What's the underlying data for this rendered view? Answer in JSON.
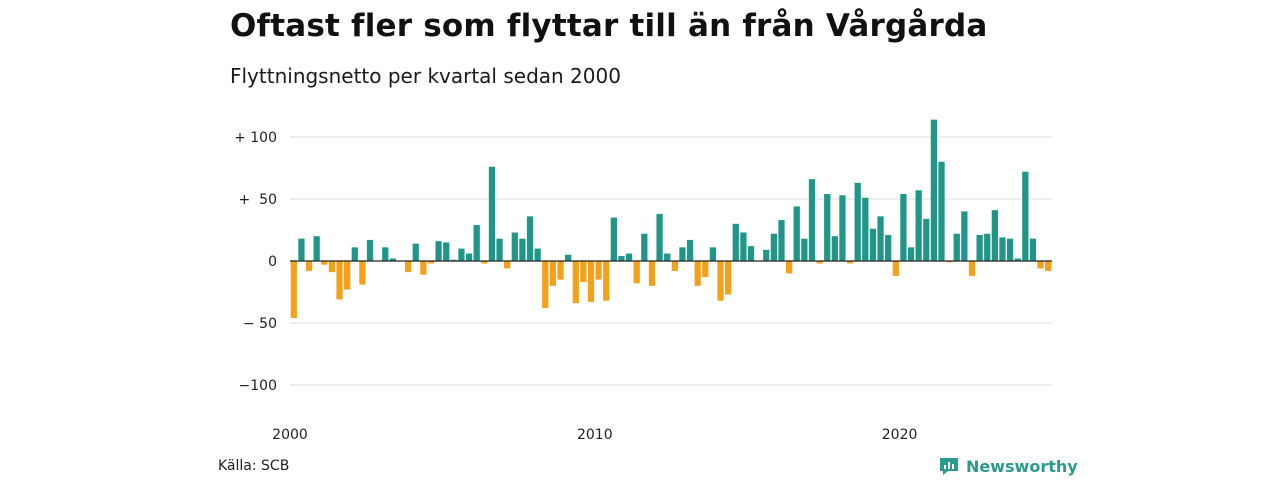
{
  "title": "Oftast fler som flyttar till än från Vårgårda",
  "subtitle": "Flyttningsnetto per kvartal sedan 2000",
  "source": "Källa: SCB",
  "brand": {
    "name": "Newsworthy",
    "icon": "newsworthy-logo-icon",
    "color": "#2a9a8c"
  },
  "colors": {
    "positive": "#1f9688",
    "negative": "#f5a01a",
    "grid": "#dddddd",
    "zero_line": "#222222"
  },
  "chart_data": {
    "type": "bar",
    "title": "Oftast fler som flyttar till än från Vårgårda",
    "subtitle": "Flyttningsnetto per kvartal sedan 2000",
    "xlabel": "",
    "ylabel": "",
    "x_start": "2000 Q1",
    "x_ticks": [
      {
        "label": "2000",
        "index": 0
      },
      {
        "label": "2010",
        "index": 40
      },
      {
        "label": "2020",
        "index": 80
      }
    ],
    "y_ticks": [
      {
        "label": "+ 100",
        "value": 100
      },
      {
        "label": "+  50",
        "value": 50
      },
      {
        "label": "0",
        "value": 0
      },
      {
        "label": "− 50",
        "value": -50
      },
      {
        "label": "−100",
        "value": -100
      }
    ],
    "ylim": [
      -100,
      100
    ],
    "grid": true,
    "values": [
      -46,
      18,
      -8,
      20,
      -3,
      -9,
      -31,
      -23,
      11,
      -19,
      17,
      0,
      11,
      2,
      0,
      -9,
      14,
      -11,
      -2,
      16,
      15,
      1,
      10,
      6,
      29,
      -2,
      76,
      18,
      -6,
      23,
      18,
      36,
      10,
      -38,
      -20,
      -15,
      5,
      -34,
      -17,
      -33,
      -15,
      -32,
      35,
      4,
      6,
      -18,
      22,
      -20,
      38,
      6,
      -8,
      11,
      17,
      -20,
      -13,
      11,
      -32,
      -27,
      30,
      23,
      12,
      0,
      9,
      22,
      33,
      -10,
      44,
      18,
      66,
      -2,
      54,
      20,
      53,
      -2,
      63,
      51,
      26,
      36,
      21,
      -12,
      54,
      11,
      57,
      34,
      114,
      80,
      -1,
      22,
      40,
      -12,
      21,
      22,
      41,
      19,
      18,
      2,
      72,
      18,
      -6,
      -8
    ]
  }
}
